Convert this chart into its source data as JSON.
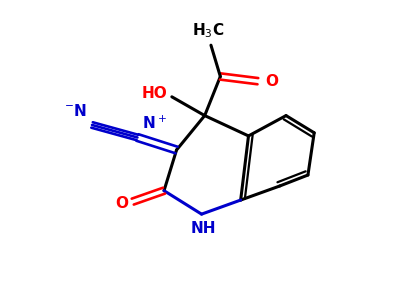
{
  "bg": "#ffffff",
  "bk": "#000000",
  "rd": "#ff0000",
  "bl": "#0000cc",
  "lw": 2.2,
  "lw2": 1.9,
  "fs": 11,
  "fig_w": 4.0,
  "fig_h": 3.0,
  "dpi": 100,
  "xlim": [
    -1,
    11
  ],
  "ylim": [
    -0.5,
    9
  ]
}
